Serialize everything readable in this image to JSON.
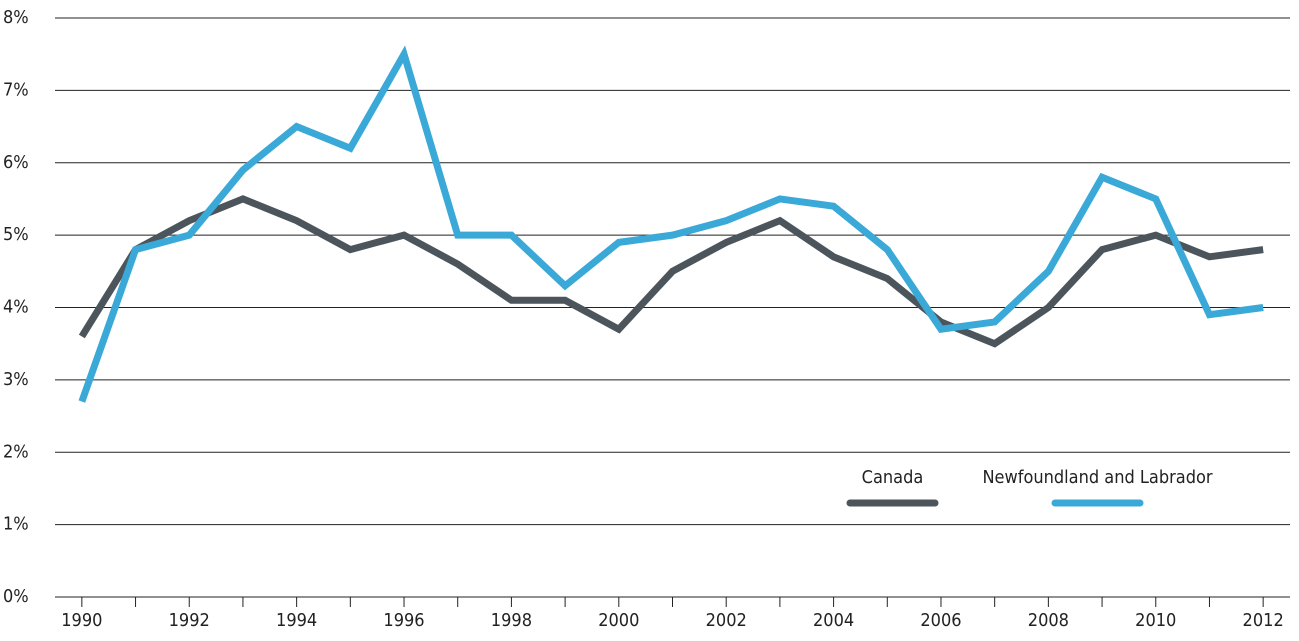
{
  "chart_data": {
    "type": "line",
    "x": [
      1990,
      1991,
      1992,
      1993,
      1994,
      1995,
      1996,
      1997,
      1998,
      1999,
      2000,
      2001,
      2002,
      2003,
      2004,
      2005,
      2006,
      2007,
      2008,
      2009,
      2010,
      2011,
      2012
    ],
    "series": [
      {
        "name": "Canada",
        "color": "#4b555b",
        "values": [
          3.6,
          4.8,
          5.2,
          5.5,
          5.2,
          4.8,
          5.0,
          4.6,
          4.1,
          4.1,
          3.7,
          4.5,
          4.9,
          5.2,
          4.7,
          4.4,
          3.8,
          3.5,
          4.0,
          4.8,
          5.0,
          4.7,
          4.8
        ]
      },
      {
        "name": "Newfoundland and Labrador",
        "color": "#3aa9d8",
        "values": [
          2.7,
          4.8,
          5.0,
          5.9,
          6.5,
          6.2,
          7.5,
          5.0,
          5.0,
          4.3,
          4.9,
          5.0,
          5.2,
          5.5,
          5.4,
          4.8,
          3.7,
          3.8,
          4.5,
          5.8,
          5.5,
          3.9,
          4.0
        ]
      }
    ],
    "xlim": [
      1989.5,
      2012.5
    ],
    "xticks": [
      1990,
      1992,
      1994,
      1996,
      1998,
      2000,
      2002,
      2004,
      2006,
      2008,
      2010,
      2012
    ],
    "ylim": [
      0,
      8
    ],
    "yticks": [
      {
        "value": 0,
        "label": "0%"
      },
      {
        "value": 1,
        "label": "1%"
      },
      {
        "value": 2,
        "label": "2%"
      },
      {
        "value": 3,
        "label": "3%"
      },
      {
        "value": 4,
        "label": "4%"
      },
      {
        "value": 5,
        "label": "5%"
      },
      {
        "value": 6,
        "label": "6%"
      },
      {
        "value": 7,
        "label": "7%"
      },
      {
        "value": 8,
        "label": "8%"
      }
    ],
    "grid": true,
    "legend": "lower right"
  }
}
